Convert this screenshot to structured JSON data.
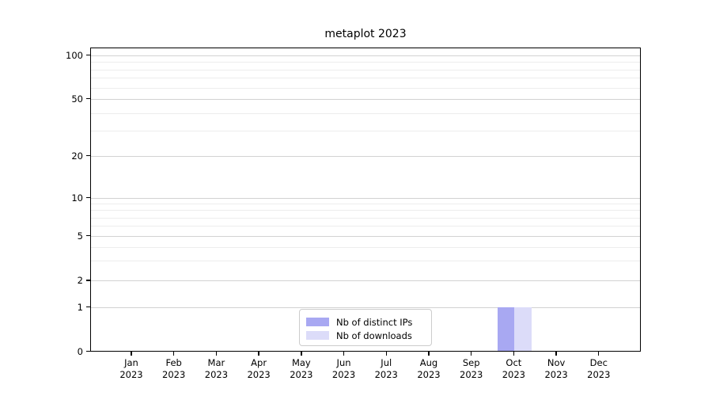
{
  "chart_data": {
    "type": "bar",
    "title": "metaplot 2023",
    "categories": [
      "Jan 2023",
      "Feb 2023",
      "Mar 2023",
      "Apr 2023",
      "May 2023",
      "Jun 2023",
      "Jul 2023",
      "Aug 2023",
      "Sep 2023",
      "Oct 2023",
      "Nov 2023",
      "Dec 2023"
    ],
    "series": [
      {
        "name": "Nb of distinct IPs",
        "color": "#a8a8f2",
        "values": [
          0,
          0,
          0,
          0,
          0,
          0,
          0,
          0,
          0,
          1,
          0,
          0
        ]
      },
      {
        "name": "Nb of downloads",
        "color": "#dcdcf9",
        "values": [
          0,
          0,
          0,
          0,
          0,
          0,
          0,
          0,
          0,
          1,
          0,
          0
        ]
      }
    ],
    "xlabel": "",
    "ylabel": "",
    "y_axis": {
      "scale": "symlog",
      "major_ticks": [
        0,
        1,
        2,
        5,
        10,
        20,
        50,
        100
      ],
      "major_tick_labels": [
        "0",
        "1",
        "2",
        "5",
        "10",
        "20",
        "50",
        "100"
      ],
      "minor_ticks": [
        3,
        4,
        6,
        7,
        8,
        9,
        30,
        40,
        60,
        70,
        80,
        90
      ],
      "ylim": [
        0,
        115
      ]
    },
    "grid": true,
    "legend_position": "lower center",
    "palette": {
      "major_gridline": "#d2d2d2",
      "minor_gridline": "#ededed",
      "spine": "#000000",
      "background": "#ffffff"
    }
  }
}
